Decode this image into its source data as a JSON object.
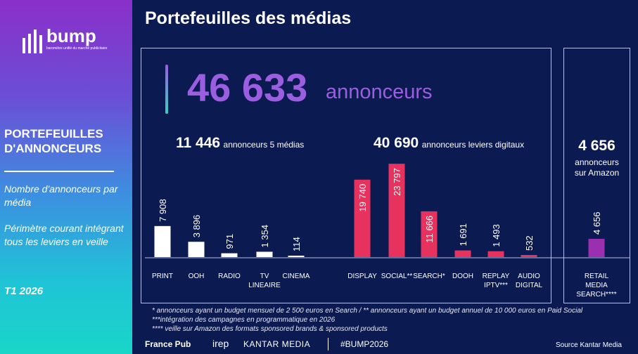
{
  "sidebar": {
    "logo_name": "bump",
    "logo_sub": "baromètre unifié du marché publicitaire",
    "title": "PORTEFEUILLES D'ANNONCEURS",
    "text1": "Nombre d'annonceurs par média",
    "text2": "Périmètre courant intégrant tous les leviers en veille",
    "period": "T1 2026"
  },
  "main": {
    "title": "Portefeuilles des médias",
    "total_value": "46 633",
    "total_unit": "annonceurs",
    "group1_value": "11 446",
    "group1_label": "annonceurs 5 médias",
    "group2_value": "40 690",
    "group2_label": "annonceurs leviers digitaux",
    "retail_value": "4 656",
    "retail_label1": "annonceurs",
    "retail_label2": "sur Amazon"
  },
  "chart_data": {
    "type": "bar",
    "categories": [
      "PRINT",
      "OOH",
      "RADIO",
      "TV LINEAIRE",
      "CINEMA",
      "DISPLAY",
      "SOCIAL**",
      "SEARCH*",
      "DOOH",
      "REPLAY IPTV***",
      "AUDIO DIGITAL",
      "RETAIL MEDIA SEARCH****"
    ],
    "category_lines": [
      [
        "PRINT"
      ],
      [
        "OOH"
      ],
      [
        "RADIO"
      ],
      [
        "TV",
        "LINEAIRE"
      ],
      [
        "CINEMA"
      ],
      [
        "DISPLAY"
      ],
      [
        "SOCIAL**"
      ],
      [
        "SEARCH*"
      ],
      [
        "DOOH"
      ],
      [
        "REPLAY",
        "IPTV***"
      ],
      [
        "AUDIO",
        "DIGITAL"
      ],
      [
        "RETAIL",
        "MEDIA",
        "SEARCH****"
      ]
    ],
    "values": [
      7908,
      3896,
      971,
      1354,
      114,
      19740,
      23797,
      11666,
      1691,
      1493,
      532,
      4656
    ],
    "value_labels": [
      "7 908",
      "3 896",
      "971",
      "1 354",
      "114",
      "19 740",
      "23 797",
      "11 666",
      "1 691",
      "1 493",
      "532",
      "4 656"
    ],
    "groups": [
      "media",
      "media",
      "media",
      "media",
      "media",
      "digital",
      "digital",
      "digital",
      "digital",
      "digital",
      "digital",
      "retail"
    ],
    "colors": {
      "media": "#ffffff",
      "digital": "#e8325e",
      "retail": "#9a2fb0"
    }
  },
  "footnotes": [
    "* annonceurs ayant un budget mensuel de 2 500 euros en Search / ** annonceurs ayant un budget annuel de 10 000 euros en Paid Social",
    "***intégration des campagnes en programmatique en 2026",
    "**** veille sur Amazon des formats sponsored brands & sponsored products"
  ],
  "footer": {
    "logos": [
      "France Pub",
      "irep",
      "KANTAR MEDIA"
    ],
    "hashtag": "#BUMP2026",
    "source": "Source Kantar Media"
  }
}
